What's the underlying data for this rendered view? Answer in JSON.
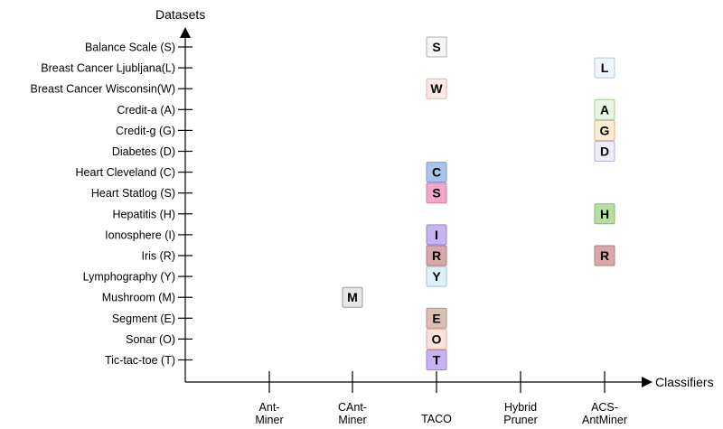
{
  "axes": {
    "y_title": "Datasets",
    "x_title": "Classifiers"
  },
  "datasets": [
    "Balance Scale (S)",
    "Breast Cancer Ljubljana(L)",
    "Breast Cancer Wisconsin(W)",
    "Credit-a (A)",
    "Credit-g (G)",
    "Diabetes (D)",
    "Heart Cleveland (C)",
    "Heart Statlog (S)",
    "Hepatitis (H)",
    "Ionosphere (I)",
    "Iris (R)",
    "Lymphography (Y)",
    "Mushroom (M)",
    "Segment (E)",
    "Sonar (O)",
    "Tic-tac-toe (T)"
  ],
  "classifiers": [
    [
      "Ant-",
      "Miner"
    ],
    [
      "CAnt-",
      "Miner"
    ],
    [
      "TACO"
    ],
    [
      "Hybrid",
      "Pruner"
    ],
    [
      "ACS-",
      "AntMiner"
    ]
  ],
  "marks": [
    {
      "dataset": 0,
      "classifier": 2,
      "letter": "S",
      "fill": "#f5f5f5",
      "stroke": "#b3b3b3"
    },
    {
      "dataset": 1,
      "classifier": 4,
      "letter": "L",
      "fill": "#eef5fc",
      "stroke": "#b6cbe0"
    },
    {
      "dataset": 2,
      "classifier": 2,
      "letter": "W",
      "fill": "#fde8e8",
      "stroke": "#e6b0b0"
    },
    {
      "dataset": 3,
      "classifier": 4,
      "letter": "A",
      "fill": "#e8f5e3",
      "stroke": "#a8cc9a"
    },
    {
      "dataset": 4,
      "classifier": 4,
      "letter": "G",
      "fill": "#fdebd3",
      "stroke": "#e0b07a"
    },
    {
      "dataset": 5,
      "classifier": 4,
      "letter": "D",
      "fill": "#efedf7",
      "stroke": "#b8b0d6"
    },
    {
      "dataset": 6,
      "classifier": 2,
      "letter": "C",
      "fill": "#a9c4eb",
      "stroke": "#7a9dcc"
    },
    {
      "dataset": 7,
      "classifier": 2,
      "letter": "S",
      "fill": "#f0a8c8",
      "stroke": "#cc7ea3"
    },
    {
      "dataset": 8,
      "classifier": 4,
      "letter": "H",
      "fill": "#b5dea0",
      "stroke": "#88b872"
    },
    {
      "dataset": 9,
      "classifier": 2,
      "letter": "I",
      "fill": "#c6b4f2",
      "stroke": "#9a86d4"
    },
    {
      "dataset": 10,
      "classifier": 2,
      "letter": "R",
      "fill": "#d9a8a8",
      "stroke": "#b07e7e"
    },
    {
      "dataset": 10,
      "classifier": 4,
      "letter": "R",
      "fill": "#d9a8a8",
      "stroke": "#b07e7e"
    },
    {
      "dataset": 11,
      "classifier": 2,
      "letter": "Y",
      "fill": "#ddf0f8",
      "stroke": "#9cc4d6"
    },
    {
      "dataset": 12,
      "classifier": 1,
      "letter": "M",
      "fill": "#e6e6e6",
      "stroke": "#9a9a9a"
    },
    {
      "dataset": 13,
      "classifier": 2,
      "letter": "E",
      "fill": "#dcc0b2",
      "stroke": "#b3907e"
    },
    {
      "dataset": 14,
      "classifier": 2,
      "letter": "O",
      "fill": "#fde2dc",
      "stroke": "#e0ab9e"
    },
    {
      "dataset": 15,
      "classifier": 2,
      "letter": "T",
      "fill": "#c6b4f2",
      "stroke": "#9a86d4"
    }
  ]
}
